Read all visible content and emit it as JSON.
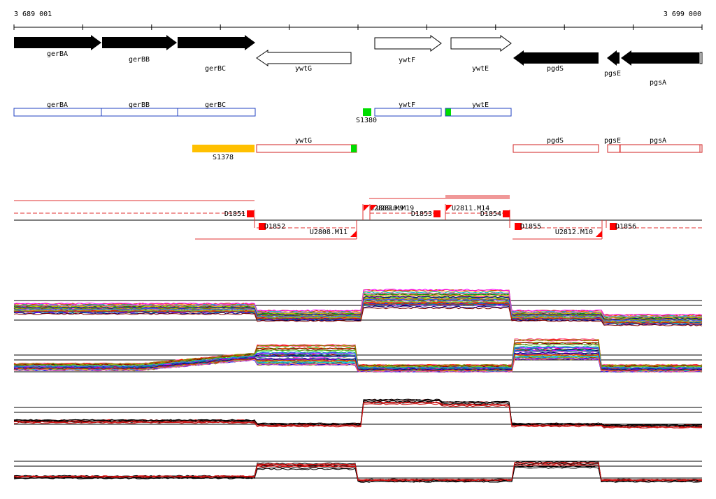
{
  "ruler": {
    "start_label": "3 689 001",
    "end_label": "3 699 000"
  },
  "genes": [
    {
      "name": "gerBA",
      "strand": "+",
      "style": "filled"
    },
    {
      "name": "gerBB",
      "strand": "+",
      "style": "filled"
    },
    {
      "name": "gerBC",
      "strand": "+",
      "style": "filled"
    },
    {
      "name": "ywtG",
      "strand": "-",
      "style": "outline"
    },
    {
      "name": "ywtF",
      "strand": "+",
      "style": "outline"
    },
    {
      "name": "ywtE",
      "strand": "+",
      "style": "outline"
    },
    {
      "name": "pgdS",
      "strand": "-",
      "style": "filled"
    },
    {
      "name": "pgsE",
      "strand": "-",
      "style": "filled"
    },
    {
      "name": "pgsA",
      "strand": "-",
      "style": "filled"
    }
  ],
  "plus_track": {
    "boxes": [
      {
        "label": "gerBA"
      },
      {
        "label": "gerBB"
      },
      {
        "label": "gerBC"
      },
      {
        "label": "ywtF"
      },
      {
        "label": "ywtE"
      }
    ],
    "markers": [
      {
        "label": "S1380",
        "color": "#00dd00"
      }
    ]
  },
  "minus_track": {
    "boxes": [
      {
        "label": "ywtG"
      },
      {
        "label": "pgdS"
      },
      {
        "label": "pgsE"
      },
      {
        "label": "pgsA"
      }
    ],
    "markers": [
      {
        "label": "S1378",
        "color": "#ffc000"
      }
    ]
  },
  "features": {
    "upper_labels": [
      "D1851",
      "U2809.M9",
      "U2810.M19",
      "D1853",
      "U2811.M14",
      "D1854"
    ],
    "lower_labels": [
      "D1852",
      "U2808.M11",
      "D1855",
      "U2812.M10",
      "D1856"
    ]
  },
  "colors": {
    "plus_box": "#2040c0",
    "minus_box": "#d02020",
    "marker_red": "#ff0000",
    "feature_line": "#e03030"
  },
  "chart_data": [
    {
      "type": "line",
      "profile": "many conditions, high in ywtF-ywtE region"
    },
    {
      "type": "line",
      "profile": "many conditions, high in ywtG and pgdS regions"
    },
    {
      "type": "line",
      "profile": "two series (black/red), high in ywtF-ywtE region"
    },
    {
      "type": "line",
      "profile": "two series (black/red), high in ywtG and pgdS regions"
    }
  ]
}
